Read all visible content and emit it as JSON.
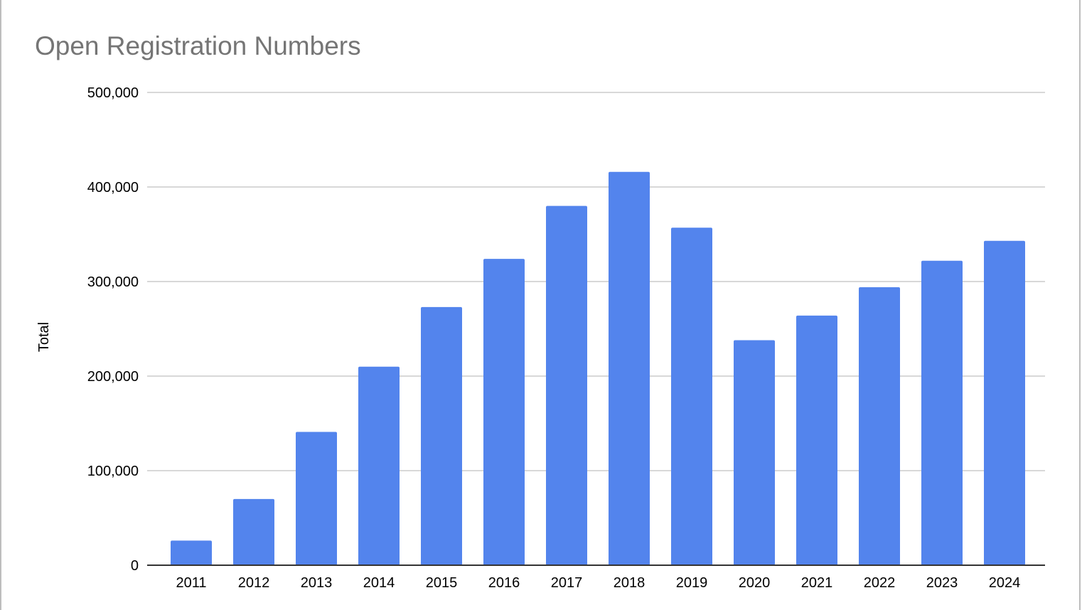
{
  "chart_data": {
    "type": "bar",
    "title": "Open Registration Numbers",
    "xlabel": "",
    "ylabel": "Total",
    "ylim": [
      0,
      500000
    ],
    "yticks": [
      0,
      100000,
      200000,
      300000,
      400000,
      500000
    ],
    "ytick_labels": [
      "0",
      "100,000",
      "200,000",
      "300,000",
      "400,000",
      "500,000"
    ],
    "grid": true,
    "legend": "none",
    "categories": [
      "2011",
      "2012",
      "2013",
      "2014",
      "2015",
      "2016",
      "2017",
      "2018",
      "2019",
      "2020",
      "2021",
      "2022",
      "2023",
      "2024"
    ],
    "values": [
      26000,
      70000,
      141000,
      210000,
      273000,
      324000,
      380000,
      416000,
      357000,
      238000,
      264000,
      294000,
      322000,
      343000
    ],
    "colors": {
      "bar": "#5384ED",
      "grid": "#cccccc",
      "axis": "#333333",
      "title": "#757575",
      "text": "#000000"
    }
  }
}
